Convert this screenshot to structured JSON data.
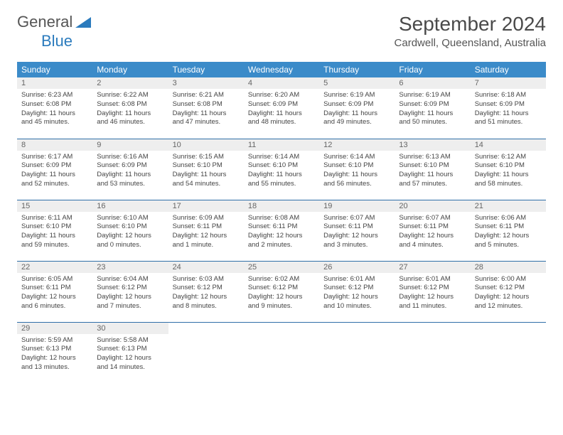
{
  "logo": {
    "part1": "General",
    "part2": "Blue"
  },
  "title": "September 2024",
  "location": "Cardwell, Queensland, Australia",
  "colors": {
    "header_bg": "#3b8bc9",
    "header_text": "#ffffff",
    "daynum_bg": "#eeeeee",
    "rule": "#2f6fa8",
    "logo_blue": "#2b7bbd"
  },
  "weekdays": [
    "Sunday",
    "Monday",
    "Tuesday",
    "Wednesday",
    "Thursday",
    "Friday",
    "Saturday"
  ],
  "weeks": [
    [
      {
        "n": "1",
        "sunrise": "Sunrise: 6:23 AM",
        "sunset": "Sunset: 6:08 PM",
        "day1": "Daylight: 11 hours",
        "day2": "and 45 minutes."
      },
      {
        "n": "2",
        "sunrise": "Sunrise: 6:22 AM",
        "sunset": "Sunset: 6:08 PM",
        "day1": "Daylight: 11 hours",
        "day2": "and 46 minutes."
      },
      {
        "n": "3",
        "sunrise": "Sunrise: 6:21 AM",
        "sunset": "Sunset: 6:08 PM",
        "day1": "Daylight: 11 hours",
        "day2": "and 47 minutes."
      },
      {
        "n": "4",
        "sunrise": "Sunrise: 6:20 AM",
        "sunset": "Sunset: 6:09 PM",
        "day1": "Daylight: 11 hours",
        "day2": "and 48 minutes."
      },
      {
        "n": "5",
        "sunrise": "Sunrise: 6:19 AM",
        "sunset": "Sunset: 6:09 PM",
        "day1": "Daylight: 11 hours",
        "day2": "and 49 minutes."
      },
      {
        "n": "6",
        "sunrise": "Sunrise: 6:19 AM",
        "sunset": "Sunset: 6:09 PM",
        "day1": "Daylight: 11 hours",
        "day2": "and 50 minutes."
      },
      {
        "n": "7",
        "sunrise": "Sunrise: 6:18 AM",
        "sunset": "Sunset: 6:09 PM",
        "day1": "Daylight: 11 hours",
        "day2": "and 51 minutes."
      }
    ],
    [
      {
        "n": "8",
        "sunrise": "Sunrise: 6:17 AM",
        "sunset": "Sunset: 6:09 PM",
        "day1": "Daylight: 11 hours",
        "day2": "and 52 minutes."
      },
      {
        "n": "9",
        "sunrise": "Sunrise: 6:16 AM",
        "sunset": "Sunset: 6:09 PM",
        "day1": "Daylight: 11 hours",
        "day2": "and 53 minutes."
      },
      {
        "n": "10",
        "sunrise": "Sunrise: 6:15 AM",
        "sunset": "Sunset: 6:10 PM",
        "day1": "Daylight: 11 hours",
        "day2": "and 54 minutes."
      },
      {
        "n": "11",
        "sunrise": "Sunrise: 6:14 AM",
        "sunset": "Sunset: 6:10 PM",
        "day1": "Daylight: 11 hours",
        "day2": "and 55 minutes."
      },
      {
        "n": "12",
        "sunrise": "Sunrise: 6:14 AM",
        "sunset": "Sunset: 6:10 PM",
        "day1": "Daylight: 11 hours",
        "day2": "and 56 minutes."
      },
      {
        "n": "13",
        "sunrise": "Sunrise: 6:13 AM",
        "sunset": "Sunset: 6:10 PM",
        "day1": "Daylight: 11 hours",
        "day2": "and 57 minutes."
      },
      {
        "n": "14",
        "sunrise": "Sunrise: 6:12 AM",
        "sunset": "Sunset: 6:10 PM",
        "day1": "Daylight: 11 hours",
        "day2": "and 58 minutes."
      }
    ],
    [
      {
        "n": "15",
        "sunrise": "Sunrise: 6:11 AM",
        "sunset": "Sunset: 6:10 PM",
        "day1": "Daylight: 11 hours",
        "day2": "and 59 minutes."
      },
      {
        "n": "16",
        "sunrise": "Sunrise: 6:10 AM",
        "sunset": "Sunset: 6:10 PM",
        "day1": "Daylight: 12 hours",
        "day2": "and 0 minutes."
      },
      {
        "n": "17",
        "sunrise": "Sunrise: 6:09 AM",
        "sunset": "Sunset: 6:11 PM",
        "day1": "Daylight: 12 hours",
        "day2": "and 1 minute."
      },
      {
        "n": "18",
        "sunrise": "Sunrise: 6:08 AM",
        "sunset": "Sunset: 6:11 PM",
        "day1": "Daylight: 12 hours",
        "day2": "and 2 minutes."
      },
      {
        "n": "19",
        "sunrise": "Sunrise: 6:07 AM",
        "sunset": "Sunset: 6:11 PM",
        "day1": "Daylight: 12 hours",
        "day2": "and 3 minutes."
      },
      {
        "n": "20",
        "sunrise": "Sunrise: 6:07 AM",
        "sunset": "Sunset: 6:11 PM",
        "day1": "Daylight: 12 hours",
        "day2": "and 4 minutes."
      },
      {
        "n": "21",
        "sunrise": "Sunrise: 6:06 AM",
        "sunset": "Sunset: 6:11 PM",
        "day1": "Daylight: 12 hours",
        "day2": "and 5 minutes."
      }
    ],
    [
      {
        "n": "22",
        "sunrise": "Sunrise: 6:05 AM",
        "sunset": "Sunset: 6:11 PM",
        "day1": "Daylight: 12 hours",
        "day2": "and 6 minutes."
      },
      {
        "n": "23",
        "sunrise": "Sunrise: 6:04 AM",
        "sunset": "Sunset: 6:12 PM",
        "day1": "Daylight: 12 hours",
        "day2": "and 7 minutes."
      },
      {
        "n": "24",
        "sunrise": "Sunrise: 6:03 AM",
        "sunset": "Sunset: 6:12 PM",
        "day1": "Daylight: 12 hours",
        "day2": "and 8 minutes."
      },
      {
        "n": "25",
        "sunrise": "Sunrise: 6:02 AM",
        "sunset": "Sunset: 6:12 PM",
        "day1": "Daylight: 12 hours",
        "day2": "and 9 minutes."
      },
      {
        "n": "26",
        "sunrise": "Sunrise: 6:01 AM",
        "sunset": "Sunset: 6:12 PM",
        "day1": "Daylight: 12 hours",
        "day2": "and 10 minutes."
      },
      {
        "n": "27",
        "sunrise": "Sunrise: 6:01 AM",
        "sunset": "Sunset: 6:12 PM",
        "day1": "Daylight: 12 hours",
        "day2": "and 11 minutes."
      },
      {
        "n": "28",
        "sunrise": "Sunrise: 6:00 AM",
        "sunset": "Sunset: 6:12 PM",
        "day1": "Daylight: 12 hours",
        "day2": "and 12 minutes."
      }
    ],
    [
      {
        "n": "29",
        "sunrise": "Sunrise: 5:59 AM",
        "sunset": "Sunset: 6:13 PM",
        "day1": "Daylight: 12 hours",
        "day2": "and 13 minutes."
      },
      {
        "n": "30",
        "sunrise": "Sunrise: 5:58 AM",
        "sunset": "Sunset: 6:13 PM",
        "day1": "Daylight: 12 hours",
        "day2": "and 14 minutes."
      },
      null,
      null,
      null,
      null,
      null
    ]
  ]
}
